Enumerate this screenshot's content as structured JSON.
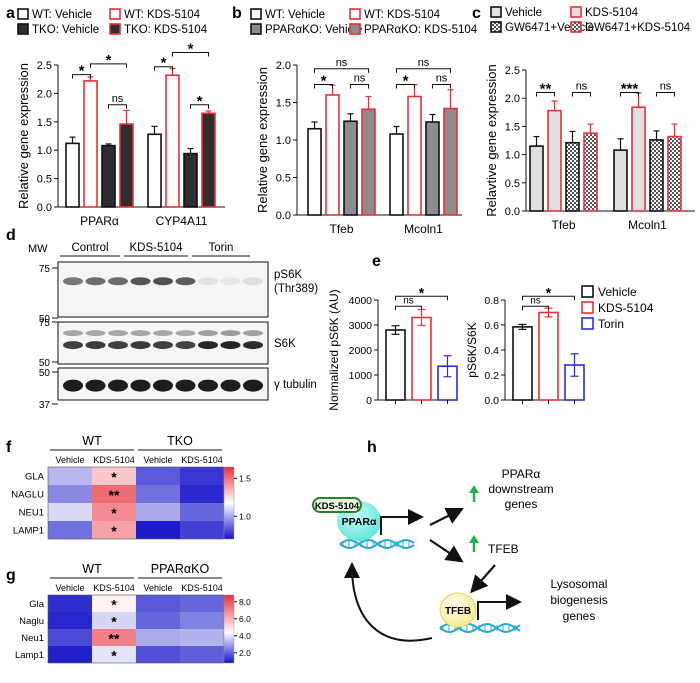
{
  "colors": {
    "black": "#111111",
    "red": "#e8303a",
    "blue": "#2c2cd8",
    "dark_fill": "#2e2e2e",
    "mid_grey": "#8c8c8c",
    "light_grey": "#e0e0e0",
    "cyan": "#5fe3d8",
    "pale_yellow": "#fbf4b4",
    "arrow_green": "#22b14c",
    "dna_blue": "#23a8d8"
  },
  "panels": {
    "a": {
      "letter": "a"
    },
    "b": {
      "letter": "b"
    },
    "c": {
      "letter": "c"
    },
    "d": {
      "letter": "d"
    },
    "e": {
      "letter": "e"
    },
    "f": {
      "letter": "f"
    },
    "g": {
      "letter": "g"
    },
    "h": {
      "letter": "h"
    }
  },
  "chart_data": [
    {
      "id": "a",
      "type": "bar",
      "ylabel": "Relative gene expression",
      "ylim": [
        0,
        2.5
      ],
      "yticks": [
        "0.0",
        "0.5",
        "1.0",
        "1.5",
        "2.0",
        "2.5"
      ],
      "categories": [
        "PPARα",
        "CYP4A11"
      ],
      "legend": [
        "WT: Vehicle",
        "WT: KDS-5104",
        "TKO: Vehicle",
        "TKO: KDS-5104"
      ],
      "series": [
        {
          "name": "WT: Vehicle",
          "style": "white_black",
          "values": [
            1.12,
            1.28
          ],
          "errors": [
            0.11,
            0.14
          ]
        },
        {
          "name": "WT: KDS-5104",
          "style": "white_red",
          "values": [
            2.22,
            2.32
          ],
          "errors": [
            0.07,
            0.12
          ]
        },
        {
          "name": "TKO: Vehicle",
          "style": "dark_black",
          "values": [
            1.08,
            0.94
          ],
          "errors": [
            0.03,
            0.09
          ]
        },
        {
          "name": "TKO: KDS-5104",
          "style": "dark_red",
          "values": [
            1.46,
            1.65
          ],
          "errors": [
            0.24,
            0.04
          ]
        }
      ],
      "significance": [
        {
          "cat": 0,
          "from": 0,
          "to": 1,
          "y": 2.33,
          "label": "*"
        },
        {
          "cat": 0,
          "from": 1,
          "to": 3,
          "y": 2.52,
          "label": "*"
        },
        {
          "cat": 0,
          "from": 2,
          "to": 3,
          "y": 1.8,
          "label": "ns"
        },
        {
          "cat": 1,
          "from": 0,
          "to": 1,
          "y": 2.47,
          "label": "*"
        },
        {
          "cat": 1,
          "from": 1,
          "to": 3,
          "y": 2.72,
          "label": "*"
        },
        {
          "cat": 1,
          "from": 2,
          "to": 3,
          "y": 1.8,
          "label": "*"
        }
      ]
    },
    {
      "id": "b",
      "type": "bar",
      "ylabel": "Relative gene expression",
      "ylim": [
        0,
        2.0
      ],
      "yticks": [
        "0.0",
        "0.5",
        "1.0",
        "1.5",
        "2.0"
      ],
      "categories": [
        "Tfeb",
        "Mcoln1"
      ],
      "legend": [
        "WT: Vehicle",
        "WT: KDS-5104",
        "PPARαKO: Vehicle",
        "PPARαKO: KDS-5104"
      ],
      "series": [
        {
          "name": "WT: Vehicle",
          "style": "white_black",
          "values": [
            1.15,
            1.08
          ],
          "errors": [
            0.09,
            0.1
          ]
        },
        {
          "name": "WT: KDS-5104",
          "style": "white_red",
          "values": [
            1.6,
            1.58
          ],
          "errors": [
            0.13,
            0.16
          ]
        },
        {
          "name": "PPARαKO: Vehicle",
          "style": "grey_black",
          "values": [
            1.25,
            1.24
          ],
          "errors": [
            0.1,
            0.1
          ]
        },
        {
          "name": "PPARαKO: KDS-5104",
          "style": "grey_red",
          "values": [
            1.41,
            1.42
          ],
          "errors": [
            0.17,
            0.25
          ]
        }
      ],
      "significance": [
        {
          "cat": 0,
          "from": 0,
          "to": 1,
          "y": 1.74,
          "label": "*"
        },
        {
          "cat": 0,
          "from": 0,
          "to": 3,
          "y": 1.95,
          "label": "ns"
        },
        {
          "cat": 0,
          "from": 2,
          "to": 3,
          "y": 1.74,
          "label": "ns"
        },
        {
          "cat": 1,
          "from": 0,
          "to": 1,
          "y": 1.74,
          "label": "*"
        },
        {
          "cat": 1,
          "from": 0,
          "to": 3,
          "y": 1.95,
          "label": "ns"
        },
        {
          "cat": 1,
          "from": 2,
          "to": 3,
          "y": 1.74,
          "label": "ns"
        }
      ]
    },
    {
      "id": "c",
      "type": "bar",
      "ylabel": "Relavtive gene expression",
      "ylim": [
        0,
        2.5
      ],
      "yticks": [
        "0.0",
        "0.5",
        "1.0",
        "1.5",
        "2.0",
        "2.5"
      ],
      "categories": [
        "Tfeb",
        "Mcoln1"
      ],
      "legend": [
        "Vehicle",
        "KDS-5104",
        "GW6471+Vehicle",
        "GW6471+KDS-5104"
      ],
      "series": [
        {
          "name": "Vehicle",
          "style": "lightgrey_black",
          "values": [
            1.15,
            1.08
          ],
          "errors": [
            0.17,
            0.2
          ]
        },
        {
          "name": "KDS-5104",
          "style": "lightgrey_red",
          "values": [
            1.78,
            1.84
          ],
          "errors": [
            0.17,
            0.25
          ]
        },
        {
          "name": "GW6471+Vehicle",
          "style": "check_black",
          "values": [
            1.21,
            1.26
          ],
          "errors": [
            0.2,
            0.16
          ]
        },
        {
          "name": "GW6471+KDS-5104",
          "style": "check_red",
          "values": [
            1.38,
            1.32
          ],
          "errors": [
            0.16,
            0.22
          ]
        }
      ],
      "significance": [
        {
          "cat": 0,
          "from": 0,
          "to": 1,
          "y": 2.1,
          "label": "**"
        },
        {
          "cat": 0,
          "from": 2,
          "to": 3,
          "y": 2.1,
          "label": "ns"
        },
        {
          "cat": 1,
          "from": 0,
          "to": 1,
          "y": 2.1,
          "label": "***"
        },
        {
          "cat": 1,
          "from": 2,
          "to": 3,
          "y": 2.1,
          "label": "ns"
        }
      ]
    },
    {
      "id": "e1",
      "type": "bar",
      "ylabel": "Normalized pS6K (AU)",
      "ylim": [
        0,
        4000
      ],
      "yticks": [
        "0",
        "1000",
        "2000",
        "3000",
        "4000"
      ],
      "categories": [
        "Vehicle",
        "KDS-5104",
        "Torin"
      ],
      "values": [
        2800,
        3300,
        1350
      ],
      "errors": [
        170,
        320,
        420
      ],
      "colors": [
        "black",
        "red",
        "blue"
      ],
      "significance": [
        {
          "from": 0,
          "to": 1,
          "y": 3750,
          "label": "ns"
        },
        {
          "from": 0,
          "to": 2,
          "y": 4150,
          "label": "*"
        }
      ]
    },
    {
      "id": "e2",
      "type": "bar",
      "ylabel": "pS6K/S6K",
      "ylim": [
        0,
        0.8
      ],
      "yticks": [
        "0.0",
        "0.2",
        "0.4",
        "0.6",
        "0.8"
      ],
      "categories": [
        "Vehicle",
        "KDS-5104",
        "Torin"
      ],
      "values": [
        0.585,
        0.7,
        0.28
      ],
      "errors": [
        0.02,
        0.035,
        0.09
      ],
      "colors": [
        "black",
        "red",
        "blue"
      ],
      "significance": [
        {
          "from": 0,
          "to": 1,
          "y": 0.75,
          "label": "ns"
        },
        {
          "from": 0,
          "to": 2,
          "y": 0.83,
          "label": "*"
        }
      ],
      "legend": [
        "Vehicle",
        "KDS-5104",
        "Torin"
      ]
    },
    {
      "id": "f",
      "type": "heatmap",
      "groups": [
        "WT",
        "TKO"
      ],
      "columns": [
        "Vehicle",
        "KDS-5104",
        "Vehicle",
        "KDS-5104"
      ],
      "rows": [
        "GLA",
        "NAGLU",
        "NEU1",
        "LAMP1"
      ],
      "values": [
        [
          1.05,
          1.32,
          0.85,
          0.78
        ],
        [
          0.95,
          1.52,
          0.9,
          0.75
        ],
        [
          1.12,
          1.45,
          1.02,
          0.88
        ],
        [
          0.9,
          1.4,
          0.72,
          0.8
        ]
      ],
      "stars": [
        [
          "",
          "*",
          "",
          ""
        ],
        [
          "",
          "**",
          "",
          ""
        ],
        [
          "",
          "*",
          "",
          ""
        ],
        [
          "",
          "*",
          "",
          ""
        ]
      ],
      "scale": {
        "min": 0.7,
        "mid": 1.2,
        "max": 1.65,
        "ticks": [
          "1.5",
          "1.0"
        ],
        "tick_values": [
          1.5,
          1.0
        ]
      }
    },
    {
      "id": "g",
      "type": "heatmap",
      "groups": [
        "WT",
        "PPARαKO"
      ],
      "columns": [
        "Vehicle",
        "KDS-5104",
        "Vehicle",
        "KDS-5104"
      ],
      "rows": [
        "Gla",
        "Naglu",
        "Neu1",
        "Lamp1"
      ],
      "values": [
        [
          1.2,
          4.5,
          1.8,
          2.0
        ],
        [
          1.1,
          3.6,
          2.0,
          2.4
        ],
        [
          1.6,
          7.0,
          3.0,
          3.1
        ],
        [
          1.0,
          3.8,
          1.7,
          1.9
        ]
      ],
      "stars": [
        [
          "",
          "*",
          "",
          ""
        ],
        [
          "",
          "*",
          "",
          ""
        ],
        [
          "",
          "**",
          "",
          ""
        ],
        [
          "",
          "*",
          "",
          ""
        ]
      ],
      "scale": {
        "min": 0.8,
        "mid": 4.2,
        "max": 8.8,
        "ticks": [
          "8.0",
          "6.0",
          "4.0",
          "2.0"
        ],
        "tick_values": [
          8.0,
          6.0,
          4.0,
          2.0
        ]
      }
    }
  ],
  "western_blot": {
    "mw_label": "MW",
    "groups": [
      "Control",
      "KDS-5104",
      "Torin"
    ],
    "blots": [
      {
        "label": "pS6K",
        "sublabel": "(Thr389)",
        "markers": [
          "75",
          "50"
        ],
        "intensity": [
          0.55,
          0.6,
          0.6,
          0.7,
          0.72,
          0.68,
          0.08,
          0.06,
          0.1
        ]
      },
      {
        "label": "S6K",
        "sublabel": "",
        "markers": [
          "75",
          "50"
        ],
        "intensity": [
          0.8,
          0.82,
          0.8,
          0.82,
          0.8,
          0.78,
          0.9,
          0.92,
          0.88
        ]
      },
      {
        "label": "γ tubulin",
        "sublabel": "",
        "markers": [
          "50",
          "37"
        ],
        "intensity": [
          0.95,
          0.95,
          0.95,
          0.95,
          0.95,
          0.95,
          0.95,
          0.95,
          0.95
        ]
      }
    ]
  },
  "schematic": {
    "drug_label": "KDS-5104",
    "receptor_label": "PPARα",
    "tfeb_node": "TFEB",
    "target1_line1": "PPARα",
    "target1_line2": "downstream",
    "target1_line3": "genes",
    "tfeb_text": "TFEB",
    "outcome_line1": "Lysosomal",
    "outcome_line2": "biogenesis",
    "outcome_line3": "genes"
  }
}
